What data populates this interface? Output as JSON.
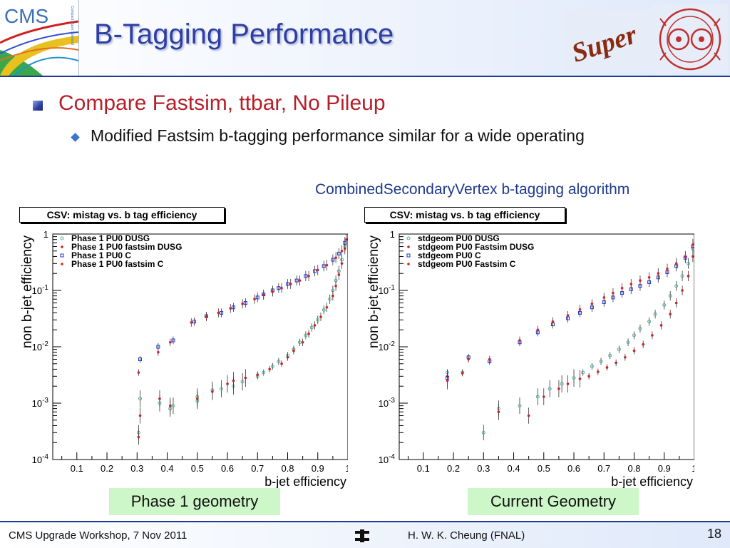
{
  "header": {
    "title": "B-Tagging Performance",
    "cms_logo_text": "CMS",
    "cms_logo_subtext": "Compact Muon Solenoid",
    "super_logo_text": "Super"
  },
  "content": {
    "bullet1": "Compare Fastsim, ttbar, No Pileup",
    "bullet2": "Modified Fastsim b-tagging performance similar for a wide operating",
    "algorithm_caption": "CombinedSecondaryVertex b-tagging algorithm"
  },
  "chart_data": [
    {
      "type": "scatter",
      "title": "CSV: mistag vs. b tag efficiency",
      "xlabel": "b-jet efficiency",
      "ylabel": "non b-jet efficiency",
      "xlim": [
        0.02,
        1.0
      ],
      "ylim": [
        0.0001,
        1
      ],
      "yscale": "log",
      "xticks": [
        "0.1",
        "0.2",
        "0.3",
        "0.4",
        "0.5",
        "0.6",
        "0.7",
        "0.8",
        "0.9",
        "1"
      ],
      "yticks": [
        {
          "base": "1",
          "exp": ""
        },
        {
          "base": "10",
          "exp": "-1"
        },
        {
          "base": "10",
          "exp": "-2"
        },
        {
          "base": "10",
          "exp": "-3"
        },
        {
          "base": "10",
          "exp": "-4"
        }
      ],
      "legend_position": "top-left",
      "caption": "Phase 1 geometry",
      "series": [
        {
          "name": "Phase 1 PU0 DUSG",
          "color": "#5aaa9a",
          "marker": "open-circle",
          "points": [
            [
              0.305,
              0.0003
            ],
            [
              0.31,
              0.0012
            ],
            [
              0.375,
              0.001
            ],
            [
              0.41,
              0.0008
            ],
            [
              0.42,
              0.0009
            ],
            [
              0.5,
              0.0011
            ],
            [
              0.5,
              0.0013
            ],
            [
              0.55,
              0.0017
            ],
            [
              0.58,
              0.0018
            ],
            [
              0.62,
              0.002
            ],
            [
              0.65,
              0.0024
            ],
            [
              0.7,
              0.003
            ],
            [
              0.72,
              0.0035
            ],
            [
              0.75,
              0.0045
            ],
            [
              0.77,
              0.0055
            ],
            [
              0.8,
              0.007
            ],
            [
              0.82,
              0.009
            ],
            [
              0.84,
              0.012
            ],
            [
              0.86,
              0.016
            ],
            [
              0.88,
              0.022
            ],
            [
              0.9,
              0.03
            ],
            [
              0.92,
              0.045
            ],
            [
              0.94,
              0.07
            ],
            [
              0.95,
              0.1
            ],
            [
              0.96,
              0.15
            ],
            [
              0.97,
              0.22
            ],
            [
              0.98,
              0.35
            ],
            [
              0.99,
              0.6
            ]
          ]
        },
        {
          "name": "Phase 1 PU0 fastsim DUSG",
          "color": "#cc2222",
          "marker": "dot",
          "points": [
            [
              0.305,
              0.00025
            ],
            [
              0.31,
              0.0006
            ],
            [
              0.375,
              0.0012
            ],
            [
              0.41,
              0.0009
            ],
            [
              0.5,
              0.0012
            ],
            [
              0.55,
              0.0016
            ],
            [
              0.6,
              0.0022
            ],
            [
              0.62,
              0.0025
            ],
            [
              0.66,
              0.0028
            ],
            [
              0.7,
              0.0032
            ],
            [
              0.74,
              0.004
            ],
            [
              0.78,
              0.005
            ],
            [
              0.8,
              0.0065
            ],
            [
              0.82,
              0.0085
            ],
            [
              0.85,
              0.012
            ],
            [
              0.87,
              0.017
            ],
            [
              0.89,
              0.024
            ],
            [
              0.91,
              0.034
            ],
            [
              0.93,
              0.05
            ],
            [
              0.95,
              0.08
            ],
            [
              0.96,
              0.12
            ],
            [
              0.97,
              0.19
            ],
            [
              0.98,
              0.3
            ],
            [
              0.99,
              0.55
            ]
          ]
        },
        {
          "name": "Phase 1 PU0 C",
          "color": "#2233cc",
          "marker": "open-square",
          "points": [
            [
              0.31,
              0.006
            ],
            [
              0.37,
              0.01
            ],
            [
              0.42,
              0.013
            ],
            [
              0.49,
              0.028
            ],
            [
              0.53,
              0.035
            ],
            [
              0.58,
              0.04
            ],
            [
              0.62,
              0.05
            ],
            [
              0.66,
              0.06
            ],
            [
              0.7,
              0.075
            ],
            [
              0.72,
              0.085
            ],
            [
              0.75,
              0.1
            ],
            [
              0.77,
              0.11
            ],
            [
              0.8,
              0.13
            ],
            [
              0.83,
              0.15
            ],
            [
              0.86,
              0.18
            ],
            [
              0.89,
              0.22
            ],
            [
              0.92,
              0.27
            ],
            [
              0.95,
              0.35
            ],
            [
              0.97,
              0.45
            ],
            [
              0.99,
              0.7
            ]
          ]
        },
        {
          "name": "Phase 1 PU0 fastsim C",
          "color": "#dd2222",
          "marker": "dot",
          "points": [
            [
              0.305,
              0.0035
            ],
            [
              0.37,
              0.008
            ],
            [
              0.41,
              0.012
            ],
            [
              0.48,
              0.027
            ],
            [
              0.53,
              0.034
            ],
            [
              0.57,
              0.04
            ],
            [
              0.61,
              0.048
            ],
            [
              0.65,
              0.058
            ],
            [
              0.69,
              0.07
            ],
            [
              0.72,
              0.083
            ],
            [
              0.75,
              0.095
            ],
            [
              0.78,
              0.11
            ],
            [
              0.81,
              0.13
            ],
            [
              0.84,
              0.15
            ],
            [
              0.87,
              0.18
            ],
            [
              0.9,
              0.23
            ],
            [
              0.93,
              0.28
            ],
            [
              0.96,
              0.38
            ],
            [
              0.98,
              0.5
            ],
            [
              0.995,
              0.8
            ]
          ]
        }
      ]
    },
    {
      "type": "scatter",
      "title": "CSV: mistag vs. b tag efficiency",
      "xlabel": "b-jet efficiency",
      "ylabel": "non b-jet efficiency",
      "xlim": [
        0.02,
        1.0
      ],
      "ylim": [
        0.0001,
        1
      ],
      "yscale": "log",
      "xticks": [
        "0.1",
        "0.2",
        "0.3",
        "0.4",
        "0.5",
        "0.6",
        "0.7",
        "0.8",
        "0.9",
        "1"
      ],
      "yticks": [
        {
          "base": "1",
          "exp": ""
        },
        {
          "base": "10",
          "exp": "-1"
        },
        {
          "base": "10",
          "exp": "-2"
        },
        {
          "base": "10",
          "exp": "-3"
        },
        {
          "base": "10",
          "exp": "-4"
        }
      ],
      "legend_position": "top-left",
      "caption": "Current Geometry",
      "series": [
        {
          "name": "stdgeom PU0 DUSG",
          "color": "#5aaa9a",
          "marker": "open-circle",
          "points": [
            [
              0.18,
              0.0035
            ],
            [
              0.23,
              0.0035
            ],
            [
              0.3,
              0.0003
            ],
            [
              0.35,
              0.0008
            ],
            [
              0.42,
              0.0009
            ],
            [
              0.48,
              0.0013
            ],
            [
              0.52,
              0.0018
            ],
            [
              0.56,
              0.0022
            ],
            [
              0.6,
              0.0028
            ],
            [
              0.63,
              0.0035
            ],
            [
              0.66,
              0.0045
            ],
            [
              0.69,
              0.0055
            ],
            [
              0.72,
              0.007
            ],
            [
              0.75,
              0.009
            ],
            [
              0.78,
              0.012
            ],
            [
              0.8,
              0.016
            ],
            [
              0.82,
              0.021
            ],
            [
              0.85,
              0.028
            ],
            [
              0.87,
              0.038
            ],
            [
              0.9,
              0.055
            ],
            [
              0.92,
              0.08
            ],
            [
              0.94,
              0.12
            ],
            [
              0.96,
              0.18
            ],
            [
              0.98,
              0.3
            ],
            [
              0.995,
              0.55
            ]
          ]
        },
        {
          "name": "stdgeom PU0 Fastsim DUSG",
          "color": "#cc2222",
          "marker": "dot",
          "points": [
            [
              0.18,
              0.003
            ],
            [
              0.23,
              0.0034
            ],
            [
              0.35,
              0.0007
            ],
            [
              0.45,
              0.0006
            ],
            [
              0.5,
              0.0013
            ],
            [
              0.55,
              0.0018
            ],
            [
              0.58,
              0.0022
            ],
            [
              0.62,
              0.0027
            ],
            [
              0.65,
              0.003
            ],
            [
              0.68,
              0.0036
            ],
            [
              0.71,
              0.0043
            ],
            [
              0.74,
              0.0052
            ],
            [
              0.77,
              0.0065
            ],
            [
              0.8,
              0.0085
            ],
            [
              0.83,
              0.011
            ],
            [
              0.86,
              0.016
            ],
            [
              0.89,
              0.024
            ],
            [
              0.92,
              0.038
            ],
            [
              0.94,
              0.06
            ],
            [
              0.96,
              0.1
            ],
            [
              0.98,
              0.18
            ],
            [
              0.995,
              0.4
            ]
          ]
        },
        {
          "name": "stdgeom PU0 C",
          "color": "#2233cc",
          "marker": "open-square",
          "points": [
            [
              0.18,
              0.0028
            ],
            [
              0.25,
              0.0065
            ],
            [
              0.32,
              0.0055
            ],
            [
              0.42,
              0.012
            ],
            [
              0.48,
              0.018
            ],
            [
              0.53,
              0.025
            ],
            [
              0.58,
              0.032
            ],
            [
              0.62,
              0.04
            ],
            [
              0.66,
              0.05
            ],
            [
              0.7,
              0.062
            ],
            [
              0.73,
              0.075
            ],
            [
              0.76,
              0.09
            ],
            [
              0.79,
              0.105
            ],
            [
              0.82,
              0.12
            ],
            [
              0.85,
              0.14
            ],
            [
              0.88,
              0.17
            ],
            [
              0.91,
              0.21
            ],
            [
              0.94,
              0.27
            ],
            [
              0.97,
              0.38
            ],
            [
              0.995,
              0.6
            ]
          ]
        },
        {
          "name": "stdgeom PU0 Fastsim C",
          "color": "#dd2222",
          "marker": "dot",
          "points": [
            [
              0.18,
              0.0025
            ],
            [
              0.25,
              0.006
            ],
            [
              0.32,
              0.006
            ],
            [
              0.42,
              0.013
            ],
            [
              0.48,
              0.02
            ],
            [
              0.53,
              0.028
            ],
            [
              0.58,
              0.036
            ],
            [
              0.62,
              0.046
            ],
            [
              0.66,
              0.058
            ],
            [
              0.7,
              0.075
            ],
            [
              0.73,
              0.09
            ],
            [
              0.76,
              0.11
            ],
            [
              0.79,
              0.13
            ],
            [
              0.82,
              0.15
            ],
            [
              0.85,
              0.17
            ],
            [
              0.88,
              0.2
            ],
            [
              0.91,
              0.24
            ],
            [
              0.94,
              0.3
            ],
            [
              0.97,
              0.4
            ],
            [
              0.995,
              0.65
            ]
          ]
        }
      ]
    }
  ],
  "footer": {
    "left": "CMS Upgrade Workshop, 7 Nov 2011",
    "center": "H. W. K. Cheung (FNAL)",
    "page": "18"
  }
}
